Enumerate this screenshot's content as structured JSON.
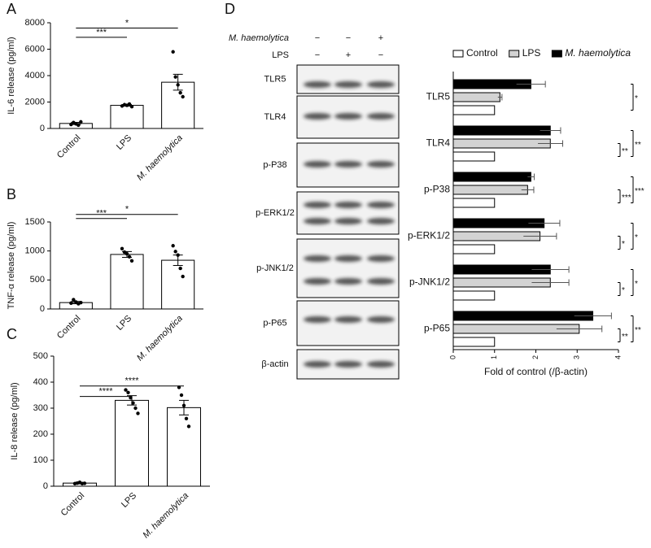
{
  "chart_data": [
    {
      "panel": "A",
      "type": "bar",
      "ylabel": "IL-6 release (pg/ml)",
      "categories": [
        "Control",
        "LPS",
        "M. haemolytica"
      ],
      "italic_categories": [
        2
      ],
      "values": [
        380,
        1750,
        3500
      ],
      "errors": [
        80,
        60,
        600
      ],
      "points": [
        [
          300,
          450,
          350,
          250,
          500
        ],
        [
          1700,
          1800,
          1750,
          1850,
          1650
        ],
        [
          5800,
          3900,
          3300,
          2700,
          2400
        ]
      ],
      "ylim": [
        0,
        8000
      ],
      "yticks": [
        0,
        2000,
        4000,
        6000,
        8000
      ],
      "annotations": [
        {
          "label": "*",
          "pair": [
            0,
            2
          ],
          "y": 7600
        },
        {
          "label": "***",
          "pair": [
            0,
            1
          ],
          "y": 6900
        }
      ]
    },
    {
      "panel": "B",
      "type": "bar",
      "ylabel": "TNF-α release (pg/ml)",
      "categories": [
        "Control",
        "LPS",
        "M. haemolytica"
      ],
      "italic_categories": [
        2
      ],
      "values": [
        110,
        940,
        840
      ],
      "errors": [
        20,
        50,
        90
      ],
      "points": [
        [
          100,
          160,
          120,
          90,
          110
        ],
        [
          1040,
          980,
          950,
          900,
          830
        ],
        [
          1090,
          990,
          930,
          700,
          560
        ]
      ],
      "ylim": [
        0,
        1500
      ],
      "yticks": [
        0,
        500,
        1000,
        1500
      ],
      "annotations": [
        {
          "label": "*",
          "pair": [
            0,
            2
          ],
          "y": 1630
        },
        {
          "label": "***",
          "pair": [
            0,
            1
          ],
          "y": 1560
        }
      ]
    },
    {
      "panel": "C",
      "type": "bar",
      "ylabel": "IL-8 release (pg/ml)",
      "categories": [
        "Control",
        "LPS",
        "M. haemolytica"
      ],
      "italic_categories": [
        2
      ],
      "values": [
        12,
        330,
        302
      ],
      "errors": [
        3,
        18,
        28
      ],
      "points": [
        [
          10,
          12,
          15,
          10,
          11
        ],
        [
          370,
          360,
          340,
          320,
          300,
          280
        ],
        [
          380,
          350,
          310,
          260,
          230
        ]
      ],
      "ylim": [
        0,
        500
      ],
      "yticks": [
        0,
        100,
        200,
        300,
        400,
        500
      ],
      "annotations": [
        {
          "label": "****",
          "pair": [
            0,
            2
          ],
          "y": 385
        },
        {
          "label": "****",
          "pair": [
            0,
            1
          ],
          "y": 345
        }
      ]
    },
    {
      "panel": "D",
      "type": "barh",
      "xlabel": "Fold of control (/β-actin)",
      "categories": [
        "TLR5",
        "TLR4",
        "p-P38",
        "p-ERK1/2",
        "p-JNK1/2",
        "p-P65"
      ],
      "series": [
        {
          "name": "Control",
          "color": "#ffffff",
          "values": [
            1,
            1,
            1,
            1,
            1,
            1
          ]
        },
        {
          "name": "LPS",
          "color": "#d3d3d3",
          "values": [
            1.13,
            2.35,
            1.8,
            2.1,
            2.35,
            3.05
          ],
          "errors": [
            0.05,
            0.3,
            0.15,
            0.4,
            0.45,
            0.55
          ]
        },
        {
          "name": "M. haemolytica",
          "color": "#000000",
          "values": [
            1.88,
            2.35,
            1.88,
            2.2,
            2.35,
            3.38
          ],
          "errors": [
            0.35,
            0.25,
            0.08,
            0.38,
            0.45,
            0.45
          ]
        }
      ],
      "italic_series": [
        2
      ],
      "significance": [
        [
          null,
          "*"
        ],
        [
          "**",
          "**"
        ],
        [
          "***",
          "***"
        ],
        [
          "*",
          "*"
        ],
        [
          "*",
          "*"
        ],
        [
          "**",
          "**"
        ]
      ],
      "xlim": [
        0,
        4
      ],
      "xticks": [
        0,
        1,
        2,
        3,
        4
      ]
    }
  ],
  "blot": {
    "header_rows": [
      {
        "label": "M. haemolytica",
        "italic": true,
        "signs": [
          "−",
          "−",
          "+"
        ]
      },
      {
        "label": "LPS",
        "italic": false,
        "signs": [
          "−",
          "+",
          "−"
        ]
      }
    ],
    "bands": [
      "TLR5",
      "TLR4",
      "p-P38",
      "p-ERK1/2",
      "p-JNK1/2",
      "p-P65",
      "β-actin"
    ]
  }
}
